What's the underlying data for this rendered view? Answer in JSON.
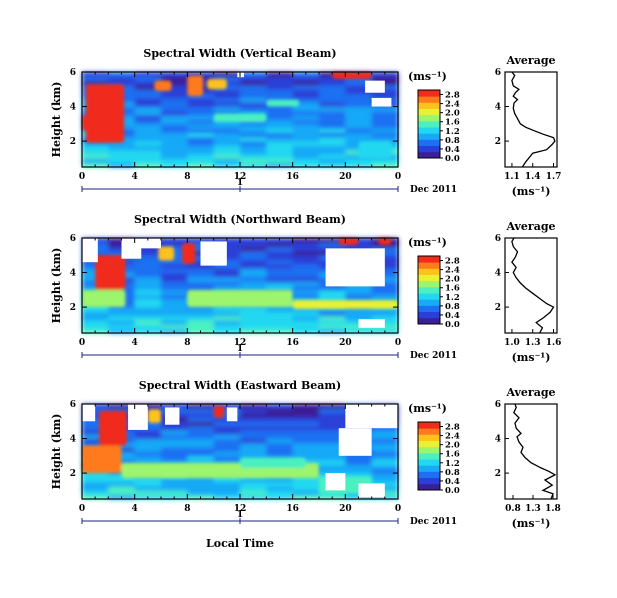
{
  "figure": {
    "xlabel": "Local Time",
    "colormap": [
      "#3a1f96",
      "#2a3fd8",
      "#1f6ff2",
      "#18a9f7",
      "#22d8f0",
      "#4cf0c0",
      "#9df46d",
      "#eaf032",
      "#ffc21a",
      "#ff7a1c",
      "#f02c1c"
    ]
  },
  "chart_data": [
    {
      "type": "heatmap",
      "title": "Spectral Width (Vertical Beam)",
      "ylabel": "Height (km)",
      "xlabel": "Local Time",
      "x_ticks": [
        "0",
        "4",
        "8",
        "12",
        "16",
        "20",
        "0"
      ],
      "xlim": [
        0,
        24
      ],
      "y_ticks": [
        "2",
        "4",
        "6"
      ],
      "ylim": [
        0.5,
        6
      ],
      "date_axis": {
        "label": "1",
        "date": "Dec 2011"
      },
      "colorbar": {
        "unit": "(ms⁻¹)",
        "ticks": [
          "0.0",
          "0.4",
          "0.8",
          "1.2",
          "1.6",
          "2.0",
          "2.4",
          "2.8"
        ],
        "range": [
          0,
          3.0
        ]
      },
      "features": [
        {
          "t0": 0.3,
          "t1": 3.2,
          "h0": 1.9,
          "h1": 5.3,
          "value": 2.9
        },
        {
          "t0": 0.0,
          "t1": 1.3,
          "h0": 2.6,
          "h1": 3.5,
          "value": 2.8
        },
        {
          "t0": 5.5,
          "t1": 6.8,
          "h0": 4.9,
          "h1": 5.5,
          "value": 2.5
        },
        {
          "t0": 8.0,
          "t1": 9.2,
          "h0": 4.6,
          "h1": 5.8,
          "value": 2.7
        },
        {
          "t0": 9.5,
          "t1": 11.0,
          "h0": 5.0,
          "h1": 5.6,
          "value": 2.3
        },
        {
          "t0": 19.0,
          "t1": 22.0,
          "h0": 5.6,
          "h1": 6.0,
          "value": 2.9
        },
        {
          "t0": 14.0,
          "t1": 16.5,
          "h0": 4.0,
          "h1": 4.4,
          "value": 1.5
        },
        {
          "t0": 10.0,
          "t1": 14.0,
          "h0": 3.1,
          "h1": 3.6,
          "value": 1.6
        },
        {
          "t0": 21.0,
          "t1": 23.5,
          "h0": 1.0,
          "h1": 2.0,
          "value": 1.3
        }
      ],
      "gaps": [
        {
          "t0": 21.5,
          "t1": 23.0,
          "h0": 4.8,
          "h1": 5.5
        },
        {
          "t0": 22.0,
          "t1": 23.5,
          "h0": 4.0,
          "h1": 4.5
        },
        {
          "t0": 11.8,
          "t1": 12.3,
          "h0": 5.7,
          "h1": 6.0
        }
      ],
      "average": {
        "title": "Average",
        "xlabel": "(ms⁻¹)",
        "x_ticks": [
          "1.1",
          "1.4",
          "1.7"
        ],
        "xlim": [
          1.0,
          1.75
        ],
        "y_ticks": [
          "2",
          "4",
          "6"
        ],
        "ylim": [
          0.5,
          6
        ],
        "profile": [
          [
            1.25,
            0.5
          ],
          [
            1.3,
            0.8
          ],
          [
            1.36,
            1.1
          ],
          [
            1.4,
            1.3
          ],
          [
            1.6,
            1.5
          ],
          [
            1.68,
            1.8
          ],
          [
            1.72,
            2.0
          ],
          [
            1.7,
            2.2
          ],
          [
            1.55,
            2.4
          ],
          [
            1.42,
            2.6
          ],
          [
            1.3,
            2.8
          ],
          [
            1.22,
            3.0
          ],
          [
            1.18,
            3.3
          ],
          [
            1.14,
            3.6
          ],
          [
            1.12,
            3.9
          ],
          [
            1.13,
            4.2
          ],
          [
            1.18,
            4.4
          ],
          [
            1.12,
            4.6
          ],
          [
            1.15,
            4.8
          ],
          [
            1.2,
            5.0
          ],
          [
            1.12,
            5.2
          ],
          [
            1.1,
            5.5
          ],
          [
            1.14,
            5.8
          ],
          [
            1.1,
            6.0
          ]
        ]
      }
    },
    {
      "type": "heatmap",
      "title": "Spectral Width (Northward Beam)",
      "ylabel": "Height (km)",
      "xlabel": "Local Time",
      "x_ticks": [
        "0",
        "4",
        "8",
        "12",
        "16",
        "20",
        "0"
      ],
      "xlim": [
        0,
        24
      ],
      "y_ticks": [
        "2",
        "4",
        "6"
      ],
      "ylim": [
        0.5,
        6
      ],
      "date_axis": {
        "label": "1",
        "date": "Dec 2011"
      },
      "colorbar": {
        "unit": "(ms⁻¹)",
        "ticks": [
          "0.0",
          "0.4",
          "0.8",
          "1.2",
          "1.6",
          "2.0",
          "2.4",
          "2.8"
        ],
        "range": [
          0,
          3.0
        ]
      },
      "features": [
        {
          "t0": 1.0,
          "t1": 3.3,
          "h0": 3.0,
          "h1": 5.0,
          "value": 2.9
        },
        {
          "t0": 0.0,
          "t1": 3.3,
          "h0": 2.0,
          "h1": 3.0,
          "value": 1.9
        },
        {
          "t0": 7.6,
          "t1": 8.6,
          "h0": 4.5,
          "h1": 5.7,
          "value": 2.8
        },
        {
          "t0": 5.8,
          "t1": 7.0,
          "h0": 4.7,
          "h1": 5.5,
          "value": 2.4
        },
        {
          "t0": 8.0,
          "t1": 16.0,
          "h0": 2.0,
          "h1": 3.0,
          "value": 1.8
        },
        {
          "t0": 16.0,
          "t1": 24.0,
          "h0": 1.9,
          "h1": 2.4,
          "value": 2.1
        },
        {
          "t0": 19.5,
          "t1": 21.0,
          "h0": 5.6,
          "h1": 6.0,
          "value": 2.9
        },
        {
          "t0": 22.5,
          "t1": 23.5,
          "h0": 5.6,
          "h1": 6.0,
          "value": 2.8
        }
      ],
      "gaps": [
        {
          "t0": 0.0,
          "t1": 1.2,
          "h0": 4.6,
          "h1": 6.0
        },
        {
          "t0": 3.0,
          "t1": 4.5,
          "h0": 4.8,
          "h1": 6.0
        },
        {
          "t0": 9.0,
          "t1": 11.0,
          "h0": 4.4,
          "h1": 5.8
        },
        {
          "t0": 18.5,
          "t1": 23.0,
          "h0": 3.2,
          "h1": 5.4
        },
        {
          "t0": 21.0,
          "t1": 23.0,
          "h0": 0.8,
          "h1": 1.3
        },
        {
          "t0": 4.0,
          "t1": 6.0,
          "h0": 5.4,
          "h1": 6.0
        }
      ],
      "average": {
        "title": "Average",
        "xlabel": "(ms⁻¹)",
        "x_ticks": [
          "1.0",
          "1.3",
          "1.6"
        ],
        "xlim": [
          0.9,
          1.65
        ],
        "y_ticks": [
          "2",
          "4",
          "6"
        ],
        "ylim": [
          0.5,
          6
        ],
        "profile": [
          [
            1.4,
            0.5
          ],
          [
            1.44,
            0.8
          ],
          [
            1.35,
            1.1
          ],
          [
            1.46,
            1.4
          ],
          [
            1.55,
            1.7
          ],
          [
            1.6,
            2.0
          ],
          [
            1.5,
            2.2
          ],
          [
            1.4,
            2.5
          ],
          [
            1.3,
            2.8
          ],
          [
            1.2,
            3.1
          ],
          [
            1.12,
            3.4
          ],
          [
            1.06,
            3.7
          ],
          [
            1.02,
            4.0
          ],
          [
            1.06,
            4.3
          ],
          [
            1.0,
            4.6
          ],
          [
            1.05,
            4.9
          ],
          [
            1.08,
            5.2
          ],
          [
            1.02,
            5.5
          ],
          [
            1.0,
            5.8
          ],
          [
            1.03,
            6.0
          ]
        ]
      }
    },
    {
      "type": "heatmap",
      "title": "Spectral Width (Eastward Beam)",
      "ylabel": "Height (km)",
      "xlabel": "Local Time",
      "x_ticks": [
        "0",
        "4",
        "8",
        "12",
        "16",
        "20",
        "0"
      ],
      "xlim": [
        0,
        24
      ],
      "y_ticks": [
        "2",
        "4",
        "6"
      ],
      "ylim": [
        0.5,
        6
      ],
      "date_axis": {
        "label": "1",
        "date": "Dec 2011"
      },
      "colorbar": {
        "unit": "(ms⁻¹)",
        "ticks": [
          "0.0",
          "0.4",
          "0.8",
          "1.2",
          "1.6",
          "2.0",
          "2.4",
          "2.8"
        ],
        "range": [
          0,
          3.0
        ]
      },
      "features": [
        {
          "t0": 1.3,
          "t1": 3.4,
          "h0": 3.6,
          "h1": 5.6,
          "value": 2.9
        },
        {
          "t0": 0.0,
          "t1": 3.0,
          "h0": 2.0,
          "h1": 3.6,
          "value": 2.5
        },
        {
          "t0": 5.0,
          "t1": 6.0,
          "h0": 4.9,
          "h1": 5.7,
          "value": 2.4
        },
        {
          "t0": 10.0,
          "t1": 10.8,
          "h0": 5.2,
          "h1": 5.9,
          "value": 2.8
        },
        {
          "t0": 21.0,
          "t1": 22.0,
          "h0": 5.2,
          "h1": 5.9,
          "value": 2.9
        },
        {
          "t0": 3.0,
          "t1": 18.0,
          "h0": 1.7,
          "h1": 2.6,
          "value": 1.9
        },
        {
          "t0": 12.0,
          "t1": 17.0,
          "h0": 2.3,
          "h1": 2.9,
          "value": 1.6
        },
        {
          "t0": 18.0,
          "t1": 22.0,
          "h0": 0.8,
          "h1": 1.8,
          "value": 1.4
        }
      ],
      "gaps": [
        {
          "t0": 0.0,
          "t1": 1.0,
          "h0": 5.0,
          "h1": 6.0
        },
        {
          "t0": 3.5,
          "t1": 5.0,
          "h0": 4.5,
          "h1": 6.0
        },
        {
          "t0": 6.3,
          "t1": 7.4,
          "h0": 4.8,
          "h1": 5.8
        },
        {
          "t0": 11.0,
          "t1": 11.8,
          "h0": 5.0,
          "h1": 5.8
        },
        {
          "t0": 20.0,
          "t1": 24.0,
          "h0": 4.6,
          "h1": 6.0
        },
        {
          "t0": 19.5,
          "t1": 22.0,
          "h0": 3.0,
          "h1": 4.6
        },
        {
          "t0": 18.5,
          "t1": 20.0,
          "h0": 1.0,
          "h1": 2.0
        },
        {
          "t0": 21.0,
          "t1": 23.0,
          "h0": 0.6,
          "h1": 1.4
        }
      ],
      "average": {
        "title": "Average",
        "xlabel": "(ms⁻¹)",
        "x_ticks": [
          "0.8",
          "1.3",
          "1.8"
        ],
        "xlim": [
          0.6,
          1.9
        ],
        "y_ticks": [
          "2",
          "4",
          "6"
        ],
        "ylim": [
          0.5,
          6
        ],
        "profile": [
          [
            1.75,
            0.5
          ],
          [
            1.8,
            0.8
          ],
          [
            1.55,
            1.0
          ],
          [
            1.78,
            1.3
          ],
          [
            1.6,
            1.6
          ],
          [
            1.85,
            1.9
          ],
          [
            1.7,
            2.1
          ],
          [
            1.5,
            2.3
          ],
          [
            1.25,
            2.6
          ],
          [
            1.1,
            2.9
          ],
          [
            1.0,
            3.2
          ],
          [
            1.05,
            3.5
          ],
          [
            0.95,
            3.8
          ],
          [
            0.9,
            4.1
          ],
          [
            1.0,
            4.3
          ],
          [
            0.88,
            4.6
          ],
          [
            0.85,
            4.9
          ],
          [
            0.95,
            5.2
          ],
          [
            0.82,
            5.5
          ],
          [
            0.88,
            5.8
          ],
          [
            0.85,
            6.0
          ]
        ]
      }
    }
  ]
}
